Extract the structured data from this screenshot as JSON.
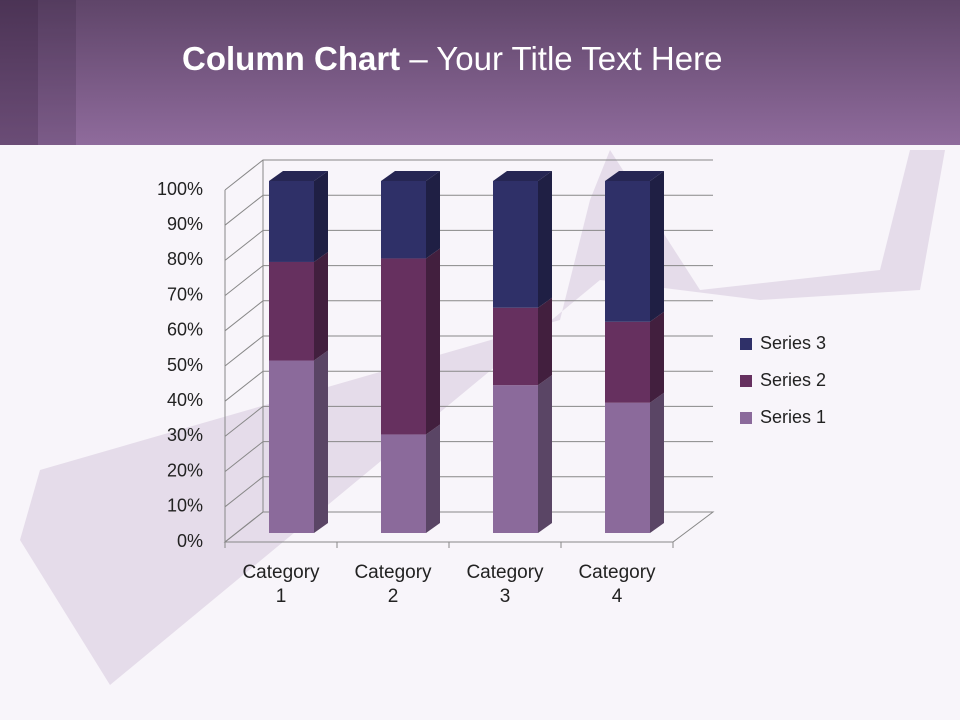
{
  "slide_title": {
    "bold": "Column Chart",
    "rest": "– Your Title Text Here"
  },
  "chart_data": {
    "type": "bar",
    "stacking": "percent",
    "categories": [
      "Category 1",
      "Category 2",
      "Category 3",
      "Category 4"
    ],
    "series": [
      {
        "name": "Series 1",
        "color": "#8b6a9b",
        "values": [
          49,
          28,
          42,
          37
        ]
      },
      {
        "name": "Series 2",
        "color": "#66305f",
        "values": [
          28,
          50,
          22,
          23
        ]
      },
      {
        "name": "Series 3",
        "color": "#2f3068",
        "values": [
          23,
          22,
          36,
          40
        ]
      }
    ],
    "ylim": [
      0,
      100
    ],
    "yticks": [
      {
        "value": 0,
        "label": "0%"
      },
      {
        "value": 10,
        "label": "10%"
      },
      {
        "value": 20,
        "label": "20%"
      },
      {
        "value": 30,
        "label": "30%"
      },
      {
        "value": 40,
        "label": "40%"
      },
      {
        "value": 50,
        "label": "50%"
      },
      {
        "value": 60,
        "label": "60%"
      },
      {
        "value": 70,
        "label": "70%"
      },
      {
        "value": 80,
        "label": "80%"
      },
      {
        "value": 90,
        "label": "90%"
      },
      {
        "value": 100,
        "label": "100%"
      }
    ],
    "grid": true,
    "legend": "right"
  }
}
